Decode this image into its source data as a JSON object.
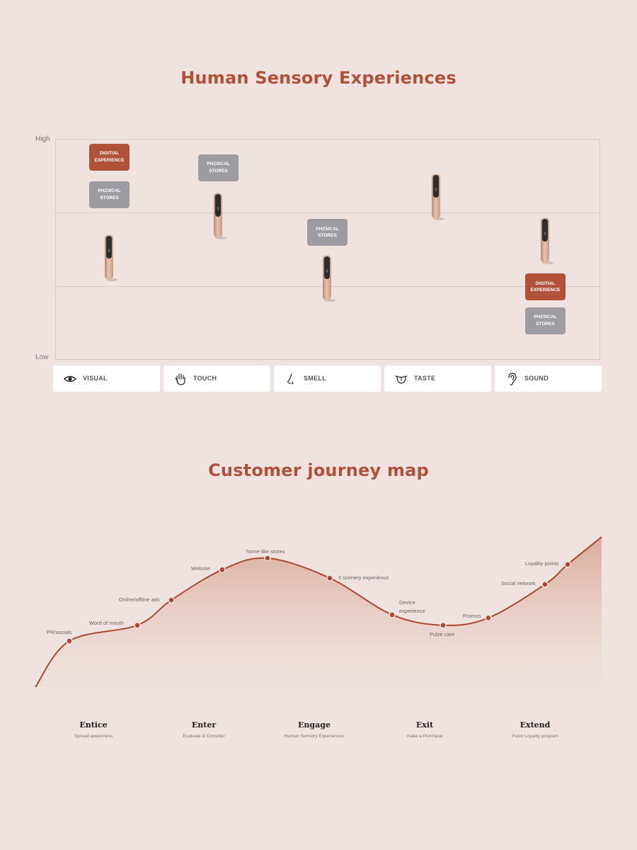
{
  "titles": {
    "sensory": "Human Sensory Experiences",
    "journey": "Customer journey map"
  },
  "colors": {
    "accent": "#b0523a",
    "physical": "#9d9ca3",
    "background": "#f0e2df"
  },
  "chart_data": [
    {
      "type": "scatter",
      "title": "Human Sensory Experiences",
      "y_axis": {
        "high_label": "High",
        "low_label": "Low"
      },
      "categories": [
        "VISUAL",
        "TOUCH",
        "SMELL",
        "TASTE",
        "SOUND"
      ],
      "category_icons": [
        "eye-icon",
        "hand-icon",
        "nose-icon",
        "mouth-icon",
        "ear-icon"
      ],
      "labels": {
        "digital": "DIGITIAL EXPERIENCE",
        "physical": "PHZSICAL STORES"
      },
      "ylim": [
        0,
        1
      ],
      "series": [
        {
          "key": "digital",
          "values": [
            0.94,
            null,
            null,
            null,
            0.32
          ]
        },
        {
          "key": "physical",
          "values": [
            0.76,
            0.89,
            0.58,
            null,
            0.16
          ]
        },
        {
          "key": "device",
          "values": [
            0.46,
            0.66,
            0.36,
            0.75,
            0.54
          ]
        }
      ]
    },
    {
      "type": "area",
      "title": "Customer journey map",
      "ylim": [
        0,
        1
      ],
      "touchpoints": [
        {
          "label": "PR/socials",
          "x": 0.06,
          "y": 0.21
        },
        {
          "label": "Word of mouth",
          "x": 0.18,
          "y": 0.36
        },
        {
          "label": "Online/offline ads",
          "x": 0.24,
          "y": 0.6
        },
        {
          "label": "Website",
          "x": 0.33,
          "y": 0.89
        },
        {
          "label": "home like stores",
          "x": 0.41,
          "y": 1.0
        },
        {
          "label": "5 scenery experience",
          "x": 0.52,
          "y": 0.81
        },
        {
          "label": "Device experience",
          "x": 0.63,
          "y": 0.46
        },
        {
          "label": "Pulze care",
          "x": 0.72,
          "y": 0.36
        },
        {
          "label": "Promos",
          "x": 0.8,
          "y": 0.43
        },
        {
          "label": "Social network",
          "x": 0.9,
          "y": 0.75
        },
        {
          "label": "Loyality points",
          "x": 0.94,
          "y": 0.94
        }
      ],
      "stages": [
        {
          "name": "Entice",
          "subtitle": "Spread awareness"
        },
        {
          "name": "Enter",
          "subtitle": "Evaluate & Consider"
        },
        {
          "name": "Engage",
          "subtitle": "Human Sensory Experiences"
        },
        {
          "name": "Exit",
          "subtitle": "make a Purchase"
        },
        {
          "name": "Extend",
          "subtitle": "Pulze Loyality program"
        }
      ]
    }
  ]
}
